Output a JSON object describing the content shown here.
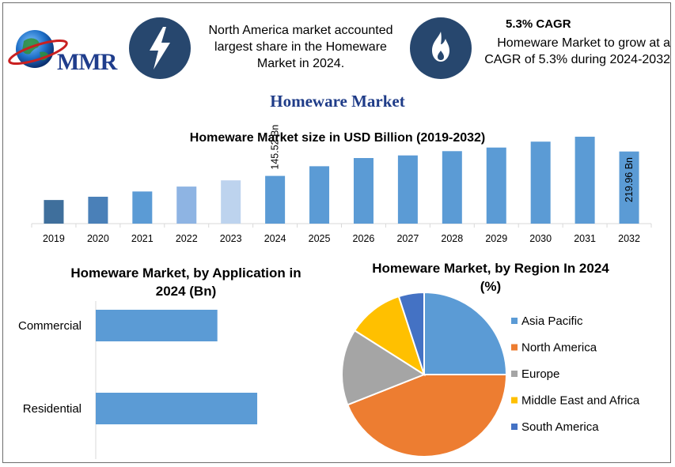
{
  "header": {
    "logo_text": "MMR",
    "highlight_1": "North America market accounted largest share in the Homeware Market in 2024.",
    "cagr_title": "5.3% CAGR",
    "highlight_2": "Homeware Market to grow at a CAGR of 5.3% during 2024-2032"
  },
  "main_title": "Homeware Market",
  "colors": {
    "bar_blue": "#5b9bd5",
    "icon_circle": "#27476e",
    "title_blue": "#1f3c88",
    "pie": [
      "#5b9bd5",
      "#ed7d31",
      "#a5a5a5",
      "#ffc000",
      "#4472c4"
    ]
  },
  "chart_data": [
    {
      "type": "bar",
      "title": "Homeware Market size in USD Billion (2019-2032)",
      "categories": [
        "2019",
        "2020",
        "2021",
        "2022",
        "2023",
        "2024",
        "2025",
        "2026",
        "2027",
        "2028",
        "2029",
        "2030",
        "2031",
        "2032"
      ],
      "values": [
        72,
        82,
        98,
        113,
        132,
        145.52,
        175,
        200,
        208,
        221,
        232,
        250,
        265,
        219.96
      ],
      "bar_colors": [
        "#3f6f9c",
        "#4a80b8",
        "#5b9bd5",
        "#8eb4e3",
        "#bdd3ee",
        "#5b9bd5",
        "#5b9bd5",
        "#5b9bd5",
        "#5b9bd5",
        "#5b9bd5",
        "#5b9bd5",
        "#5b9bd5",
        "#5b9bd5",
        "#5b9bd5"
      ],
      "data_labels": [
        {
          "index": 5,
          "text": "145.52 Bn"
        },
        {
          "index": 13,
          "text": "219.96 Bn"
        }
      ]
    },
    {
      "type": "bar",
      "orientation": "horizontal",
      "title": "Homeware Market, by Application in 2024 (Bn)",
      "categories": [
        "Commercial",
        "Residential"
      ],
      "values": [
        58,
        77
      ],
      "xlim": [
        0,
        100
      ]
    },
    {
      "type": "pie",
      "title": "Homeware Market, by Region In 2024 (%)",
      "labels": [
        "Asia Pacific",
        "North America",
        "Europe",
        "Middle East and Africa",
        "South America"
      ],
      "values": [
        25,
        44,
        15,
        11,
        5
      ],
      "legend_position": "right"
    }
  ]
}
